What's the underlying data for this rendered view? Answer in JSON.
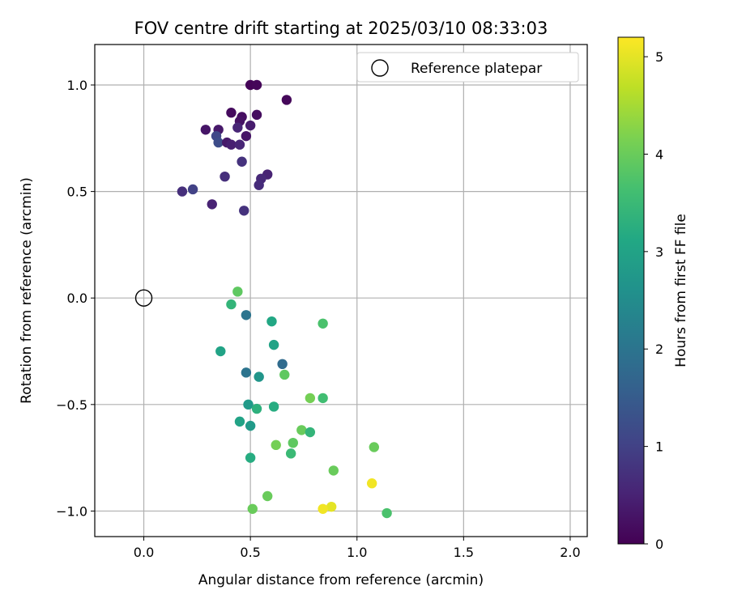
{
  "chart_data": {
    "type": "scatter",
    "title": "FOV centre drift starting at 2025/03/10 08:33:03",
    "xlabel": "Angular distance from reference (arcmin)",
    "ylabel": "Rotation from reference (arcmin)",
    "xlim": [
      -0.23,
      2.08
    ],
    "ylim": [
      -1.12,
      1.19
    ],
    "x_ticks": [
      0.0,
      0.5,
      1.0,
      1.5,
      2.0
    ],
    "x_tick_labels": [
      "0.0",
      "0.5",
      "1.0",
      "1.5",
      "2.0"
    ],
    "y_ticks": [
      -1.0,
      -0.5,
      0.0,
      0.5,
      1.0
    ],
    "y_tick_labels": [
      "−1.0",
      "−0.5",
      "0.0",
      "0.5",
      "1.0"
    ],
    "grid": true,
    "legend": {
      "placement": "top-right",
      "entries": [
        "Reference platepar"
      ]
    },
    "reference_point": {
      "x": 0.0,
      "y": 0.0
    },
    "colorbar": {
      "label": "Hours from first FF file",
      "colormap": "viridis",
      "range": [
        0,
        5.2
      ],
      "ticks": [
        0,
        1,
        2,
        3,
        4,
        5
      ],
      "tick_labels": [
        "0",
        "1",
        "2",
        "3",
        "4",
        "5"
      ]
    },
    "points": [
      {
        "x": 0.5,
        "y": 1.0,
        "t": 0.05
      },
      {
        "x": 0.53,
        "y": 1.0,
        "t": 0.08
      },
      {
        "x": 0.67,
        "y": 0.93,
        "t": 0.1
      },
      {
        "x": 0.41,
        "y": 0.87,
        "t": 0.15
      },
      {
        "x": 0.46,
        "y": 0.85,
        "t": 0.2
      },
      {
        "x": 0.53,
        "y": 0.86,
        "t": 0.18
      },
      {
        "x": 0.45,
        "y": 0.83,
        "t": 0.25
      },
      {
        "x": 0.29,
        "y": 0.79,
        "t": 0.3
      },
      {
        "x": 0.35,
        "y": 0.79,
        "t": 0.35
      },
      {
        "x": 0.44,
        "y": 0.8,
        "t": 0.55
      },
      {
        "x": 0.5,
        "y": 0.81,
        "t": 0.4
      },
      {
        "x": 0.48,
        "y": 0.76,
        "t": 0.3
      },
      {
        "x": 0.34,
        "y": 0.76,
        "t": 1.1
      },
      {
        "x": 0.35,
        "y": 0.73,
        "t": 1.2
      },
      {
        "x": 0.39,
        "y": 0.73,
        "t": 0.35
      },
      {
        "x": 0.41,
        "y": 0.72,
        "t": 0.45
      },
      {
        "x": 0.45,
        "y": 0.72,
        "t": 0.55
      },
      {
        "x": 0.46,
        "y": 0.64,
        "t": 0.75
      },
      {
        "x": 0.38,
        "y": 0.57,
        "t": 0.7
      },
      {
        "x": 0.58,
        "y": 0.58,
        "t": 0.5
      },
      {
        "x": 0.55,
        "y": 0.56,
        "t": 0.6
      },
      {
        "x": 0.54,
        "y": 0.53,
        "t": 0.65
      },
      {
        "x": 0.23,
        "y": 0.51,
        "t": 1.0
      },
      {
        "x": 0.18,
        "y": 0.5,
        "t": 0.7
      },
      {
        "x": 0.32,
        "y": 0.44,
        "t": 0.5
      },
      {
        "x": 0.47,
        "y": 0.41,
        "t": 0.75
      },
      {
        "x": 0.44,
        "y": 0.03,
        "t": 3.9
      },
      {
        "x": 0.41,
        "y": -0.03,
        "t": 3.4
      },
      {
        "x": 0.48,
        "y": -0.08,
        "t": 2.0
      },
      {
        "x": 0.6,
        "y": -0.11,
        "t": 3.1
      },
      {
        "x": 0.84,
        "y": -0.12,
        "t": 3.7
      },
      {
        "x": 0.61,
        "y": -0.22,
        "t": 3.0
      },
      {
        "x": 0.36,
        "y": -0.25,
        "t": 3.0
      },
      {
        "x": 0.65,
        "y": -0.31,
        "t": 1.8
      },
      {
        "x": 0.48,
        "y": -0.35,
        "t": 2.0
      },
      {
        "x": 0.54,
        "y": -0.37,
        "t": 2.7
      },
      {
        "x": 0.66,
        "y": -0.36,
        "t": 3.9
      },
      {
        "x": 0.78,
        "y": -0.47,
        "t": 4.1
      },
      {
        "x": 0.84,
        "y": -0.47,
        "t": 3.6
      },
      {
        "x": 0.49,
        "y": -0.5,
        "t": 2.8
      },
      {
        "x": 0.53,
        "y": -0.52,
        "t": 3.3
      },
      {
        "x": 0.61,
        "y": -0.51,
        "t": 3.2
      },
      {
        "x": 0.45,
        "y": -0.58,
        "t": 3.0
      },
      {
        "x": 0.5,
        "y": -0.6,
        "t": 2.8
      },
      {
        "x": 0.74,
        "y": -0.62,
        "t": 4.0
      },
      {
        "x": 0.78,
        "y": -0.63,
        "t": 3.4
      },
      {
        "x": 0.7,
        "y": -0.68,
        "t": 3.9
      },
      {
        "x": 0.62,
        "y": -0.69,
        "t": 4.1
      },
      {
        "x": 1.08,
        "y": -0.7,
        "t": 4.0
      },
      {
        "x": 0.69,
        "y": -0.73,
        "t": 3.5
      },
      {
        "x": 0.5,
        "y": -0.75,
        "t": 3.2
      },
      {
        "x": 0.89,
        "y": -0.81,
        "t": 4.0
      },
      {
        "x": 1.07,
        "y": -0.87,
        "t": 5.1
      },
      {
        "x": 0.58,
        "y": -0.93,
        "t": 4.0
      },
      {
        "x": 0.51,
        "y": -0.99,
        "t": 4.0
      },
      {
        "x": 0.88,
        "y": -0.98,
        "t": 5.0
      },
      {
        "x": 0.84,
        "y": -0.99,
        "t": 5.1
      },
      {
        "x": 1.14,
        "y": -1.01,
        "t": 3.7
      }
    ]
  }
}
